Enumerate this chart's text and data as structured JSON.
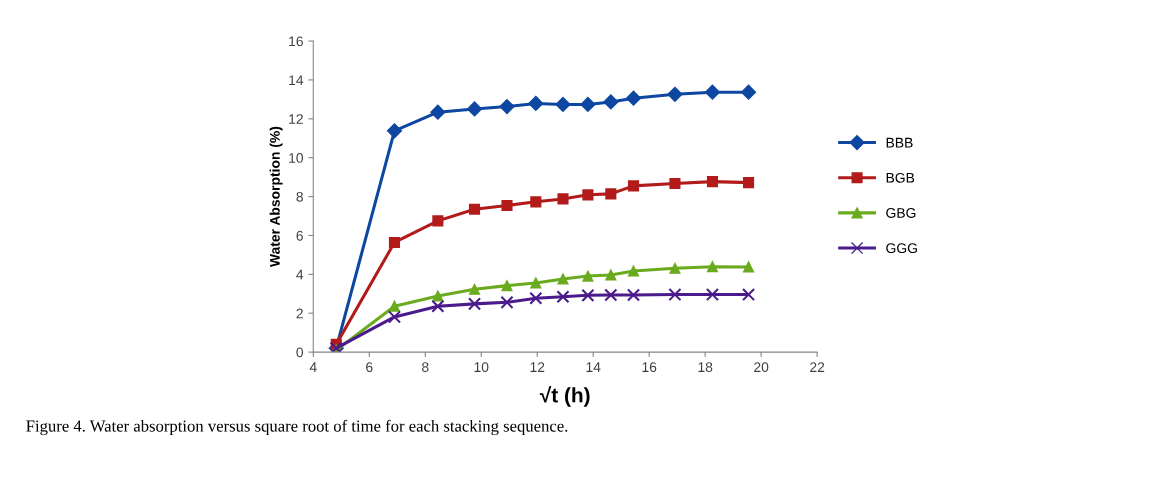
{
  "chart_data": {
    "type": "line",
    "xlabel": "√t (h)",
    "ylabel": "Water Absorption (%)",
    "x": [
      4.82,
      6.9,
      8.45,
      9.76,
      10.92,
      11.95,
      12.92,
      13.81,
      14.63,
      15.44,
      16.92,
      18.26,
      19.55
    ],
    "series": [
      {
        "name": "BBB",
        "color": "#0d47a1",
        "marker": "diamond",
        "values": [
          0.2,
          11.38,
          12.34,
          12.51,
          12.63,
          12.79,
          12.74,
          12.74,
          12.87,
          13.06,
          13.26,
          13.37,
          13.37
        ]
      },
      {
        "name": "BGB",
        "color": "#b31b1b",
        "marker": "square",
        "values": [
          0.4,
          5.64,
          6.75,
          7.35,
          7.54,
          7.73,
          7.88,
          8.09,
          8.14,
          8.55,
          8.67,
          8.77,
          8.72
        ]
      },
      {
        "name": "GBG",
        "color": "#6aaa1e",
        "marker": "triangle",
        "values": [
          0.1,
          2.36,
          2.89,
          3.23,
          3.42,
          3.56,
          3.76,
          3.91,
          3.97,
          4.17,
          4.31,
          4.39,
          4.38
        ]
      },
      {
        "name": "GGG",
        "color": "#4b1a8c",
        "marker": "cross",
        "values": [
          0.2,
          1.81,
          2.36,
          2.48,
          2.56,
          2.77,
          2.85,
          2.92,
          2.94,
          2.94,
          2.96,
          2.96,
          2.96
        ]
      }
    ],
    "xlim": [
      4,
      22
    ],
    "xticks": [
      4,
      6,
      8,
      10,
      12,
      14,
      16,
      18,
      20,
      22
    ],
    "ylim": [
      0,
      16
    ],
    "yticks": [
      0,
      2,
      4,
      6,
      8,
      10,
      12,
      14,
      16
    ],
    "grid": false,
    "legend": "right",
    "line_style": "solid",
    "annotations": [
      "Figure 4. Water absorption versus square root of time for each stacking sequence."
    ]
  }
}
